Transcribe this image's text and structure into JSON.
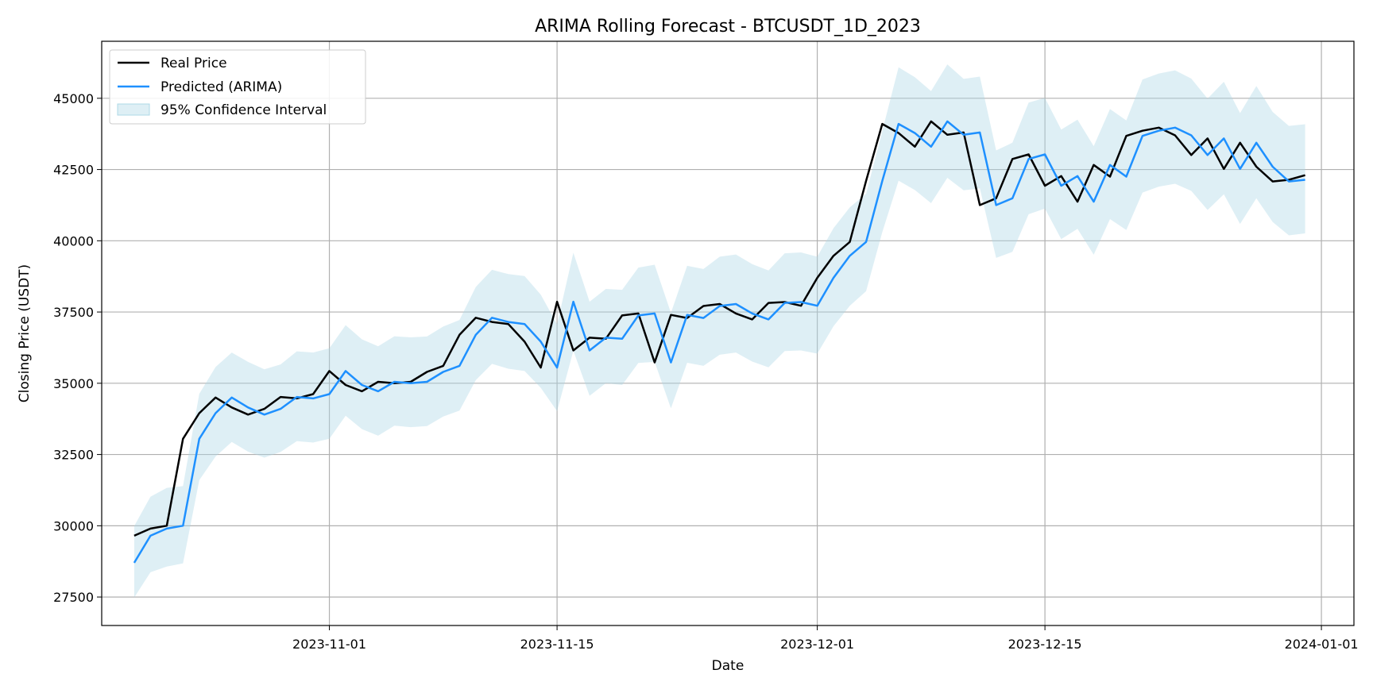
{
  "chart_data": {
    "type": "line",
    "title": "ARIMA Rolling Forecast - BTCUSDT_1D_2023",
    "xlabel": "Date",
    "ylabel": "Closing Price (USDT)",
    "ylim": [
      26500,
      47000
    ],
    "xlim": [
      "2023-10-18",
      "2024-01-03"
    ],
    "grid": true,
    "legend_position": "top-left",
    "x_ticks": [
      "2023-11-01",
      "2023-11-15",
      "2023-12-01",
      "2023-12-15",
      "2024-01-01"
    ],
    "y_ticks": [
      27500,
      30000,
      32500,
      35000,
      37500,
      40000,
      42500,
      45000
    ],
    "start_date": "2023-10-20",
    "series": [
      {
        "name": "Real Price",
        "color": "#000000",
        "values": [
          29650,
          29900,
          30000,
          33050,
          33950,
          34500,
          34150,
          33900,
          34100,
          34520,
          34470,
          34620,
          35430,
          34940,
          34720,
          35050,
          35000,
          35050,
          35400,
          35610,
          36700,
          37300,
          37150,
          37080,
          36460,
          35550,
          37860,
          36150,
          36600,
          36560,
          37380,
          37450,
          35730,
          37400,
          37290,
          37710,
          37780,
          37450,
          37240,
          37820,
          37850,
          37720,
          38700,
          39470,
          39960,
          42100,
          44100,
          43780,
          43300,
          44190,
          43720,
          43800,
          41250,
          41490,
          42870,
          43030,
          41930,
          42270,
          41370,
          42660,
          42250,
          43680,
          43860,
          43970,
          43700,
          43010,
          43590,
          42520,
          43440,
          42600,
          42080,
          42140,
          42300
        ]
      },
      {
        "name": "Predicted (ARIMA)",
        "color": "#1e90ff",
        "values": [
          28700,
          29650,
          29900,
          30000,
          33050,
          33950,
          34500,
          34150,
          33900,
          34100,
          34520,
          34470,
          34620,
          35430,
          34940,
          34720,
          35050,
          35000,
          35050,
          35400,
          35610,
          36700,
          37300,
          37150,
          37080,
          36460,
          35550,
          37860,
          36150,
          36600,
          36560,
          37380,
          37450,
          35730,
          37400,
          37290,
          37710,
          37780,
          37450,
          37240,
          37820,
          37850,
          37720,
          38700,
          39470,
          39960,
          42100,
          44100,
          43780,
          43300,
          44190,
          43720,
          43800,
          41250,
          41490,
          42870,
          43030,
          41930,
          42270,
          41370,
          42660,
          42250,
          43680,
          43860,
          43970,
          43700,
          43010,
          43590,
          42520,
          43440,
          42600,
          42080,
          42140
        ]
      },
      {
        "name": "95% Confidence Interval",
        "color": "#add8e6",
        "upper": [
          29990,
          31020,
          31330,
          31390,
          34630,
          35570,
          36080,
          35750,
          35490,
          35660,
          36120,
          36080,
          36230,
          37040,
          36540,
          36300,
          36650,
          36610,
          36640,
          36990,
          37220,
          38380,
          38980,
          38830,
          38760,
          38110,
          37070,
          39580,
          37860,
          38310,
          38280,
          39060,
          39160,
          37470,
          39120,
          39010,
          39440,
          39520,
          39180,
          38960,
          39560,
          39590,
          39440,
          40440,
          41170,
          41650,
          43850,
          46090,
          45740,
          45250,
          46190,
          45680,
          45760,
          43170,
          43440,
          44850,
          45010,
          43900,
          44250,
          43320,
          44620,
          44220,
          45660,
          45870,
          45980,
          45690,
          44990,
          45580,
          44480,
          45430,
          44520,
          44030,
          44090
        ],
        "lower": [
          27480,
          28370,
          28570,
          28680,
          31600,
          32430,
          32940,
          32600,
          32390,
          32590,
          32970,
          32920,
          33050,
          33860,
          33390,
          33160,
          33510,
          33460,
          33500,
          33830,
          34040,
          35110,
          35680,
          35510,
          35430,
          34840,
          34020,
          36140,
          34560,
          35000,
          34940,
          35710,
          35750,
          34120,
          35720,
          35610,
          36000,
          36080,
          35760,
          35560,
          36130,
          36150,
          36040,
          37000,
          37720,
          38230,
          40300,
          42110,
          41780,
          41320,
          42210,
          41770,
          41840,
          39400,
          39610,
          40930,
          41130,
          40060,
          40420,
          39510,
          40760,
          40380,
          41690,
          41900,
          42000,
          41750,
          41080,
          41630,
          40590,
          41490,
          40660,
          40190,
          40260
        ]
      }
    ]
  }
}
